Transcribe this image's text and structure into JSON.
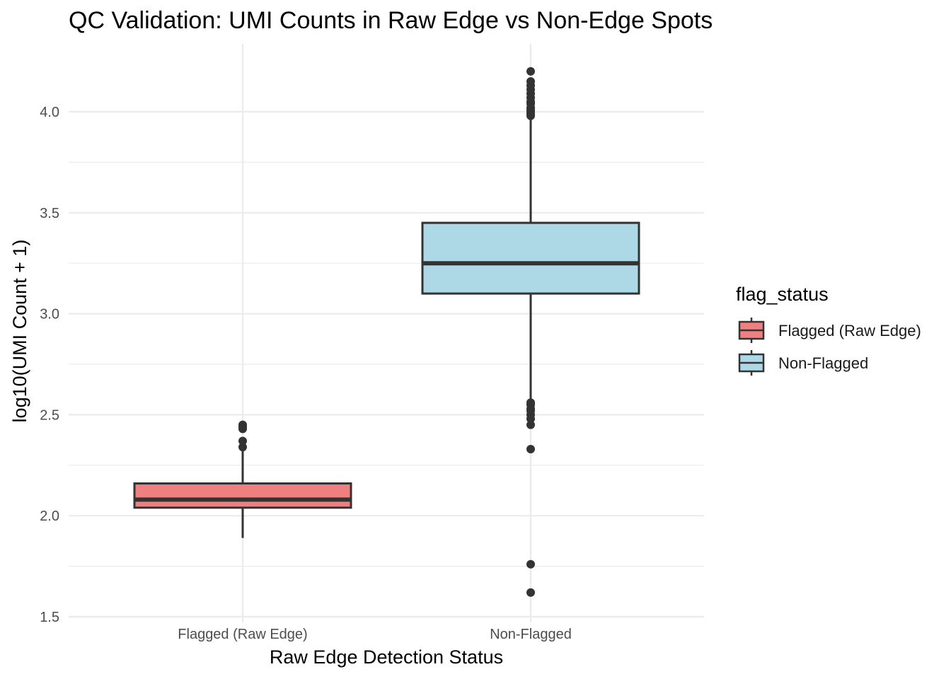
{
  "chart_data": {
    "type": "boxplot",
    "title": "QC Validation: UMI Counts in Raw Edge vs Non-Edge Spots",
    "xlabel": "Raw Edge Detection Status",
    "ylabel": "log10(UMI Count + 1)",
    "ylim": [
      1.5,
      4.25
    ],
    "yticks": [
      "1.5",
      "2.0",
      "2.5",
      "3.0",
      "3.5",
      "4.0"
    ],
    "ytick_values": [
      1.5,
      2.0,
      2.5,
      3.0,
      3.5,
      4.0
    ],
    "grid": true,
    "categories": [
      "Flagged (Raw Edge)",
      "Non-Flagged"
    ],
    "legend": {
      "title": "flag_status",
      "position": "right",
      "entries": [
        "Flagged (Raw Edge)",
        "Non-Flagged"
      ]
    },
    "colors": {
      "Flagged (Raw Edge)": "#F08080",
      "Non-Flagged": "#ADD8E6"
    },
    "series": [
      {
        "category": "Flagged (Raw Edge)",
        "whisker_low": 1.89,
        "q1": 2.04,
        "median": 2.08,
        "q3": 2.16,
        "whisker_high": 2.32,
        "outliers": [
          2.34,
          2.37,
          2.43,
          2.44,
          2.45
        ]
      },
      {
        "category": "Non-Flagged",
        "whisker_low": 2.58,
        "q1": 3.1,
        "median": 3.25,
        "q3": 3.45,
        "whisker_high": 3.97,
        "outliers": [
          1.62,
          1.76,
          2.33,
          2.45,
          2.48,
          2.5,
          2.52,
          2.53,
          2.55,
          2.56,
          3.98,
          3.99,
          4.0,
          4.01,
          4.02,
          4.04,
          4.05,
          4.07,
          4.09,
          4.11,
          4.13,
          4.15,
          4.2
        ]
      }
    ]
  }
}
